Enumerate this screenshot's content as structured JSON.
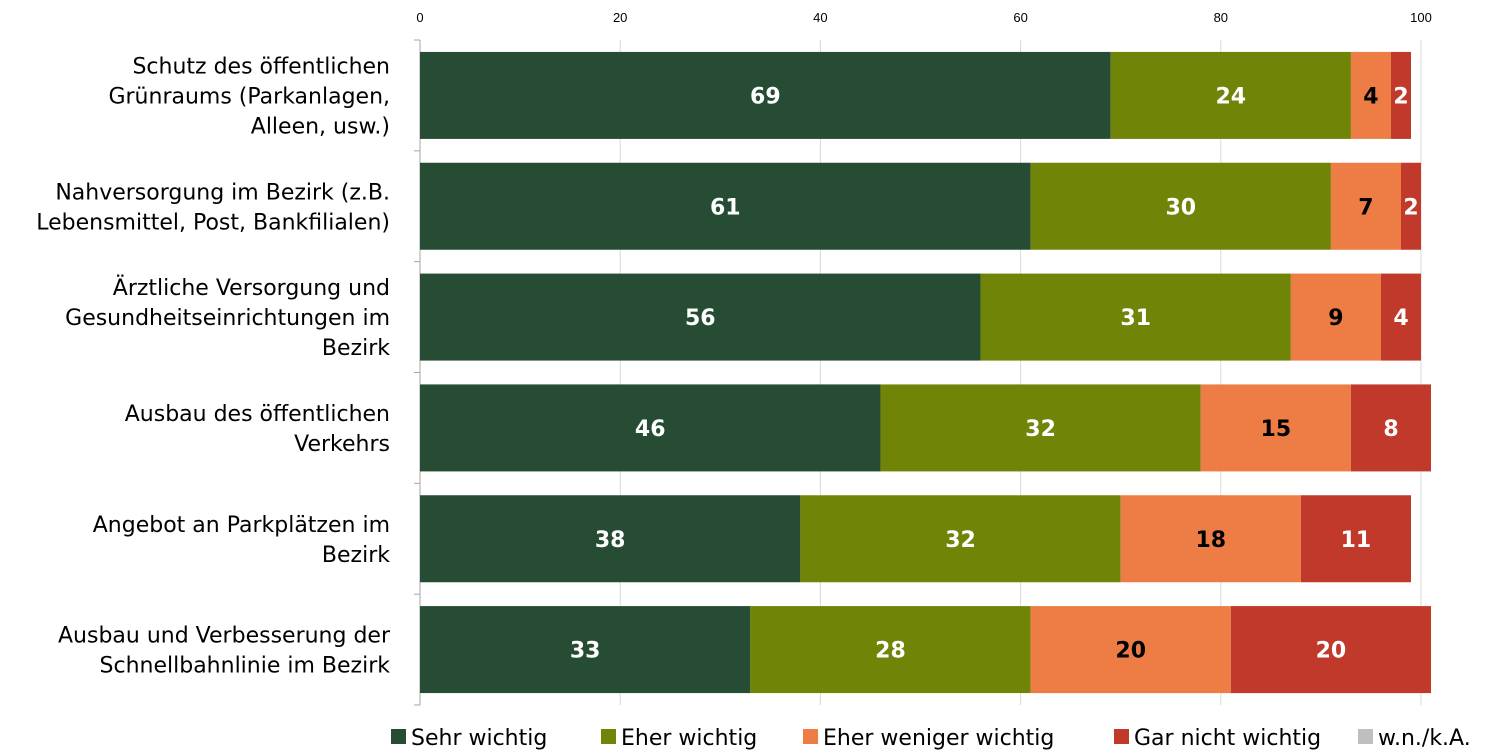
{
  "chart_data": {
    "type": "bar",
    "orientation": "horizontal",
    "stacked": true,
    "categories": [
      "Schutz des öffentlichen Grünraums (Parkanlagen, Alleen, usw.)",
      "Nahversorgung im Bezirk (z.B. Lebensmittel, Post, Bankfilialen)",
      "Ärztliche Versorgung und Gesundheitseinrichtungen im Bezirk",
      "Ausbau des öffentlichen Verkehrs",
      "Angebot an Parkplätzen im Bezirk",
      "Ausbau und Verbesserung der Schnellbahnlinie im Bezirk"
    ],
    "category_lines": [
      [
        "Schutz des öffentlichen",
        "Grünraums (Parkanlagen,",
        "Alleen, usw.)"
      ],
      [
        "Nahversorgung im Bezirk (z.B.",
        "Lebensmittel, Post, Bankfilialen)"
      ],
      [
        "Ärztliche Versorgung und",
        "Gesundheitseinrichtungen im",
        "Bezirk"
      ],
      [
        "Ausbau des öffentlichen",
        "Verkehrs"
      ],
      [
        "Angebot an Parkplätzen im",
        "Bezirk"
      ],
      [
        "Ausbau und Verbesserung der",
        "Schnellbahnlinie im Bezirk"
      ]
    ],
    "series": [
      {
        "name": "Sehr wichtig",
        "color": "#264d33",
        "label_color": "#ffffff",
        "values": [
          69,
          61,
          56,
          46,
          38,
          33
        ]
      },
      {
        "name": "Eher wichtig",
        "color": "#708508",
        "label_color": "#ffffff",
        "values": [
          24,
          30,
          31,
          32,
          32,
          28
        ]
      },
      {
        "name": "Eher weniger wichtig",
        "color": "#ed7d45",
        "label_color": "#000000",
        "values": [
          4,
          7,
          9,
          15,
          18,
          20
        ]
      },
      {
        "name": "Gar nicht wichtig",
        "color": "#c0392b",
        "label_color": "#ffffff",
        "values": [
          2,
          2,
          4,
          8,
          11,
          20
        ]
      },
      {
        "name": "w.n./k.A.",
        "color": "#bfbfbf",
        "label_color": "#000000",
        "values": [
          0,
          0,
          0,
          0,
          0,
          0
        ]
      }
    ],
    "xlim": [
      0,
      100
    ],
    "xticks": [
      0,
      20,
      40,
      60,
      80,
      100
    ],
    "axis_position": "top",
    "grid": true,
    "legend_position": "bottom"
  }
}
